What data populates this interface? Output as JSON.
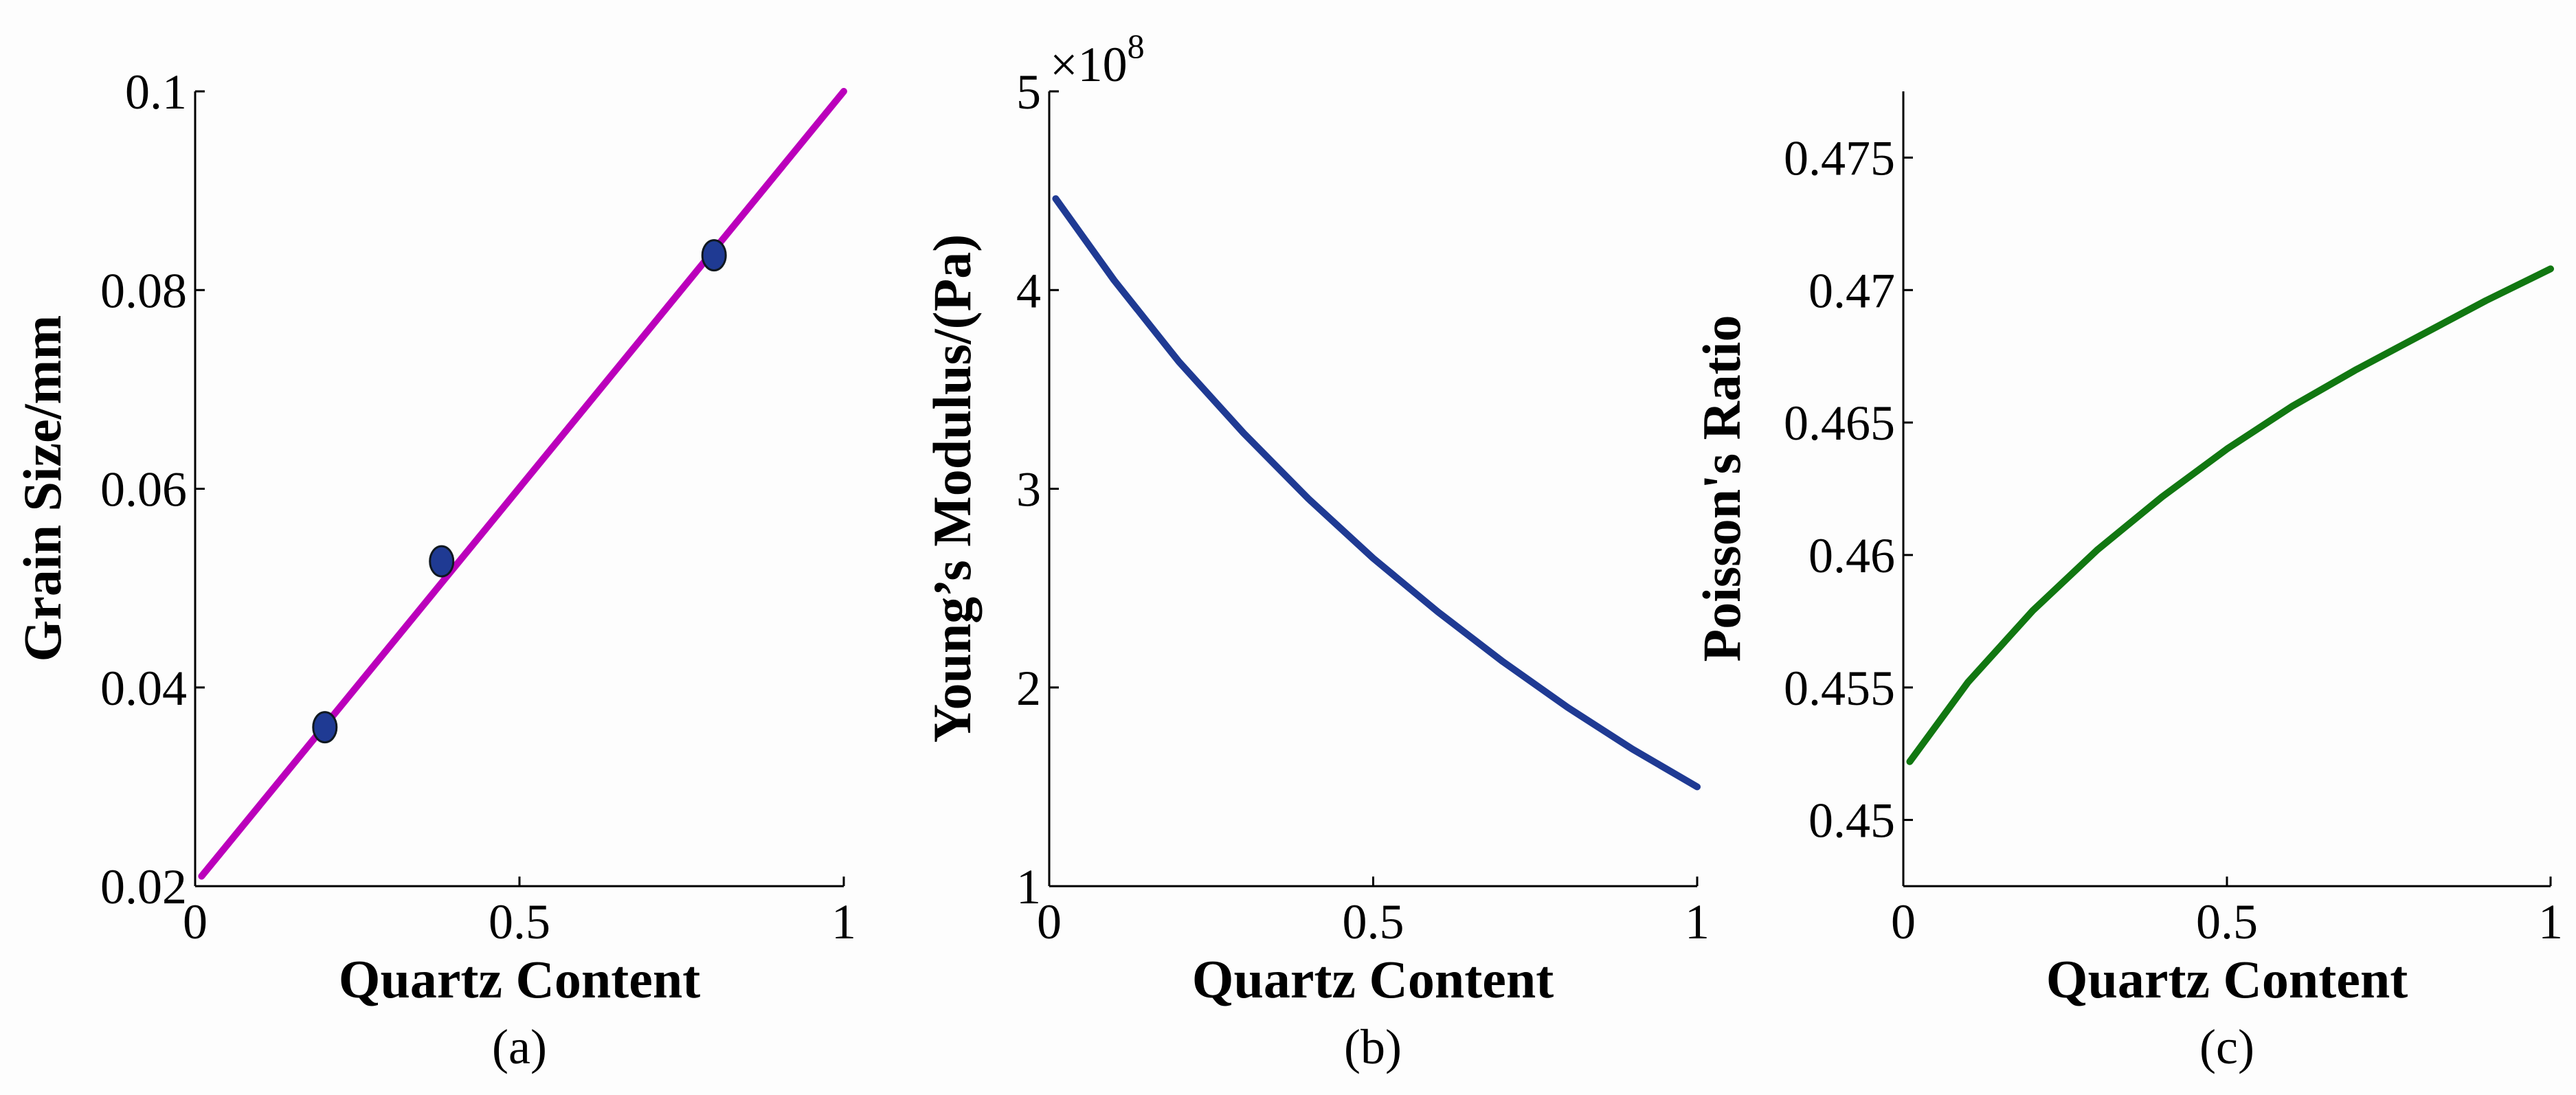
{
  "chart_data": [
    {
      "type": "line",
      "panel_label": "(a)",
      "xlabel": "Quartz Content",
      "ylabel": "Grain Size/mm",
      "xlim": [
        0,
        1
      ],
      "ylim": [
        0.02,
        0.1
      ],
      "xticks": [
        0,
        0.5,
        1
      ],
      "xtick_labels": [
        "0",
        "0.5",
        "1"
      ],
      "yticks": [
        0.02,
        0.04,
        0.06,
        0.08,
        0.1
      ],
      "ytick_labels": [
        "0.02",
        "0.04",
        "0.06",
        "0.08",
        "0.1"
      ],
      "grid": false,
      "series": [
        {
          "style": "line",
          "color": "#bb00bb",
          "x": [
            0.01,
            1.0
          ],
          "y": [
            0.021,
            0.1
          ]
        },
        {
          "style": "scatter",
          "color": "#1f3a93",
          "x": [
            0.2,
            0.38,
            0.8
          ],
          "y": [
            0.036,
            0.0527,
            0.0835
          ]
        }
      ]
    },
    {
      "type": "line",
      "panel_label": "(b)",
      "xlabel": "Quartz Content",
      "ylabel": "Young’s Modulus/(Pa)",
      "axis_multiplier": "×10",
      "axis_multiplier_exponent": "8",
      "xlim": [
        0,
        1
      ],
      "ylim": [
        1,
        5
      ],
      "xticks": [
        0,
        0.5,
        1
      ],
      "xtick_labels": [
        "0",
        "0.5",
        "1"
      ],
      "yticks": [
        1,
        2,
        3,
        4,
        5
      ],
      "ytick_labels": [
        "1",
        "2",
        "3",
        "4",
        "5"
      ],
      "grid": false,
      "series": [
        {
          "style": "line",
          "color": "#1f3a93",
          "x": [
            0.01,
            0.1,
            0.2,
            0.3,
            0.4,
            0.5,
            0.6,
            0.7,
            0.8,
            0.9,
            1.0
          ],
          "y": [
            4.46,
            4.05,
            3.64,
            3.28,
            2.95,
            2.65,
            2.38,
            2.13,
            1.9,
            1.69,
            1.5
          ]
        }
      ]
    },
    {
      "type": "line",
      "panel_label": "(c)",
      "xlabel": "Quartz Content",
      "ylabel": "Poisson's Ratio",
      "xlim": [
        0,
        1
      ],
      "ylim": [
        0.4475,
        0.4775
      ],
      "xticks": [
        0,
        0.5,
        1
      ],
      "xtick_labels": [
        "0",
        "0.5",
        "1"
      ],
      "yticks": [
        0.45,
        0.455,
        0.46,
        0.465,
        0.47,
        0.475
      ],
      "ytick_labels": [
        "0.45",
        "0.455",
        "0.46",
        "0.465",
        "0.47",
        "0.475"
      ],
      "grid": false,
      "series": [
        {
          "style": "line",
          "color": "#117711",
          "x": [
            0.01,
            0.1,
            0.2,
            0.3,
            0.4,
            0.5,
            0.6,
            0.7,
            0.8,
            0.9,
            1.0
          ],
          "y": [
            0.4522,
            0.4552,
            0.4579,
            0.4602,
            0.4622,
            0.464,
            0.4656,
            0.467,
            0.4683,
            0.4696,
            0.4708
          ]
        }
      ]
    }
  ]
}
